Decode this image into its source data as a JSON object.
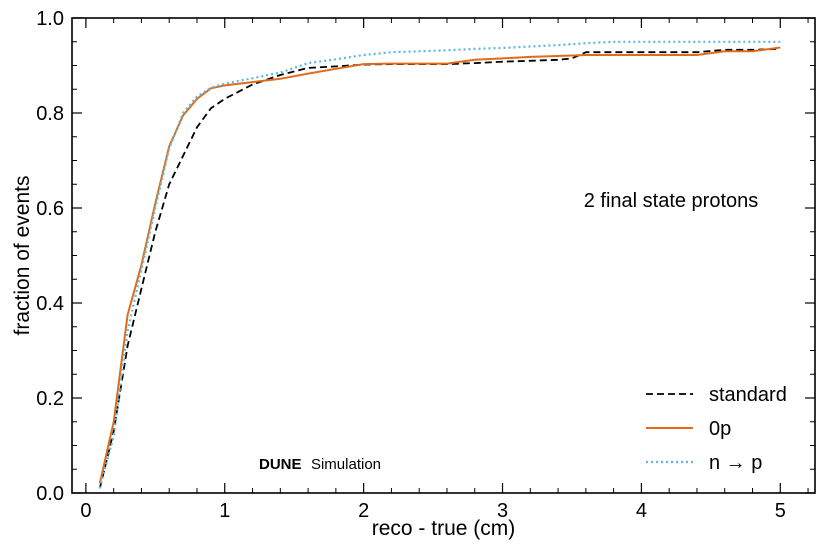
{
  "chart_data": {
    "type": "line",
    "title": "",
    "xlabel": "reco - true (cm)",
    "ylabel": "fraction of events",
    "xlim": [
      -0.1,
      5.25
    ],
    "ylim": [
      0.0,
      1.0
    ],
    "xticks": [
      0,
      1,
      2,
      3,
      4,
      5
    ],
    "xtick_labels": [
      "0",
      "1",
      "2",
      "3",
      "4",
      "5"
    ],
    "yticks": [
      0.0,
      0.2,
      0.4,
      0.6,
      0.8,
      1.0
    ],
    "ytick_labels": [
      "0.0",
      "0.2",
      "0.4",
      "0.6",
      "0.8",
      "1.0"
    ],
    "grid": false,
    "legend_position": "bottom-right",
    "annotation": "2 final state protons",
    "watermark_bold": "DUNE",
    "watermark_text": "Simulation",
    "series": [
      {
        "name": "standard",
        "color": "#000000",
        "style": "dashed",
        "x": [
          0.1,
          0.2,
          0.3,
          0.4,
          0.5,
          0.6,
          0.7,
          0.8,
          0.9,
          1.0,
          1.2,
          1.4,
          1.6,
          1.8,
          2.0,
          2.2,
          2.4,
          2.6,
          2.8,
          3.0,
          3.2,
          3.4,
          3.5,
          3.6,
          3.8,
          4.0,
          4.2,
          4.4,
          4.6,
          4.8,
          5.0
        ],
        "y": [
          0.01,
          0.13,
          0.31,
          0.43,
          0.55,
          0.65,
          0.71,
          0.77,
          0.81,
          0.83,
          0.86,
          0.88,
          0.895,
          0.898,
          0.902,
          0.903,
          0.903,
          0.903,
          0.905,
          0.908,
          0.91,
          0.912,
          0.915,
          0.928,
          0.928,
          0.928,
          0.928,
          0.928,
          0.933,
          0.933,
          0.935
        ]
      },
      {
        "name": "0p",
        "color": "#e06c1a",
        "style": "solid",
        "x": [
          0.1,
          0.2,
          0.3,
          0.4,
          0.5,
          0.6,
          0.7,
          0.8,
          0.9,
          1.0,
          1.2,
          1.4,
          1.6,
          1.8,
          2.0,
          2.2,
          2.4,
          2.6,
          2.8,
          3.0,
          3.2,
          3.4,
          3.6,
          3.8,
          4.0,
          4.2,
          4.4,
          4.6,
          4.8,
          5.0
        ],
        "y": [
          0.02,
          0.15,
          0.375,
          0.48,
          0.61,
          0.73,
          0.795,
          0.83,
          0.852,
          0.858,
          0.865,
          0.872,
          0.883,
          0.893,
          0.903,
          0.904,
          0.904,
          0.904,
          0.912,
          0.915,
          0.918,
          0.92,
          0.922,
          0.922,
          0.922,
          0.922,
          0.922,
          0.93,
          0.93,
          0.938
        ]
      },
      {
        "name": "n → p",
        "color": "#5bb8e0",
        "style": "dotted",
        "x": [
          0.1,
          0.2,
          0.3,
          0.4,
          0.5,
          0.6,
          0.7,
          0.8,
          0.9,
          1.0,
          1.2,
          1.4,
          1.6,
          1.8,
          2.0,
          2.2,
          2.4,
          2.6,
          2.8,
          3.0,
          3.2,
          3.4,
          3.6,
          3.8,
          4.0,
          4.2,
          4.4,
          4.6,
          4.8,
          5.0
        ],
        "y": [
          0.01,
          0.12,
          0.34,
          0.47,
          0.6,
          0.725,
          0.8,
          0.835,
          0.853,
          0.862,
          0.873,
          0.885,
          0.905,
          0.913,
          0.922,
          0.928,
          0.93,
          0.932,
          0.935,
          0.937,
          0.94,
          0.943,
          0.947,
          0.95,
          0.95,
          0.95,
          0.95,
          0.95,
          0.95,
          0.95
        ]
      }
    ]
  }
}
